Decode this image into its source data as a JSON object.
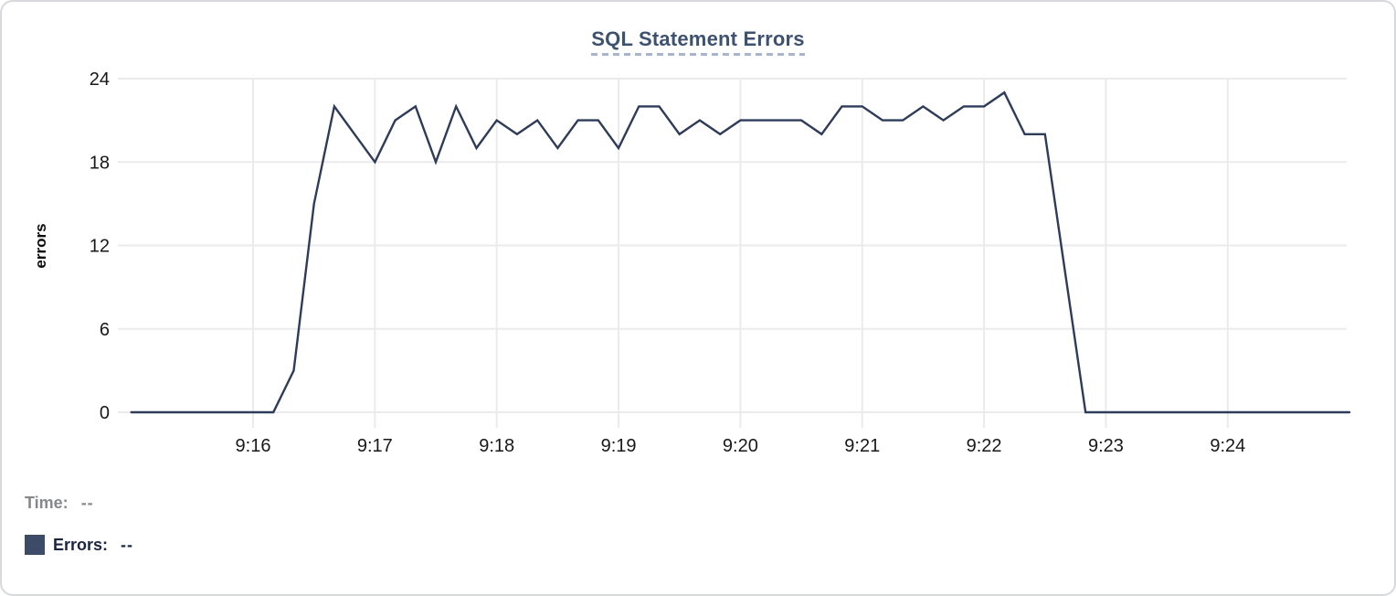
{
  "card": {
    "type": "chart-panel"
  },
  "tooltip": {
    "time_label": "Time:",
    "time_value": "--",
    "errors_label": "Errors:",
    "errors_value": "--",
    "errors_swatch_color": "#3e4b68"
  },
  "colors": {
    "line": "#2e3c5a",
    "title_text": "#3d5270",
    "title_underline": "#a9b5cb",
    "gridline": "#ebebed",
    "axis_text": "#17181a",
    "muted_text": "#87888c",
    "dark_text": "#1b2442",
    "card_border": "#d8d9dd"
  },
  "chart_data": {
    "type": "line",
    "title": "SQL Statement Errors",
    "xlabel": "",
    "ylabel": "errors",
    "grid": true,
    "legend_position": "none",
    "ylim": [
      0,
      24
    ],
    "y_ticks": [
      0,
      6,
      12,
      18,
      24
    ],
    "x_ticks": [
      "9:16",
      "9:17",
      "9:18",
      "9:19",
      "9:20",
      "9:21",
      "9:22",
      "9:23",
      "9:24"
    ],
    "series": [
      {
        "name": "Errors",
        "color": "#2e3c5a",
        "x": [
          "9:15:00",
          "9:15:10",
          "9:15:20",
          "9:15:30",
          "9:15:40",
          "9:15:50",
          "9:16:00",
          "9:16:10",
          "9:16:20",
          "9:16:30",
          "9:16:40",
          "9:16:50",
          "9:17:00",
          "9:17:10",
          "9:17:20",
          "9:17:30",
          "9:17:40",
          "9:17:50",
          "9:18:00",
          "9:18:10",
          "9:18:20",
          "9:18:30",
          "9:18:40",
          "9:18:50",
          "9:19:00",
          "9:19:10",
          "9:19:20",
          "9:19:30",
          "9:19:40",
          "9:19:50",
          "9:20:00",
          "9:20:10",
          "9:20:20",
          "9:20:30",
          "9:20:40",
          "9:20:50",
          "9:21:00",
          "9:21:10",
          "9:21:20",
          "9:21:30",
          "9:21:40",
          "9:21:50",
          "9:22:00",
          "9:22:10",
          "9:22:20",
          "9:22:30",
          "9:22:40",
          "9:22:50",
          "9:23:00",
          "9:23:10",
          "9:23:20",
          "9:23:30",
          "9:23:40",
          "9:23:50",
          "9:24:00",
          "9:24:10",
          "9:24:20",
          "9:24:30",
          "9:24:40",
          "9:24:50",
          "9:25:00"
        ],
        "values": [
          0,
          0,
          0,
          0,
          0,
          0,
          0,
          0,
          3,
          15,
          22,
          20,
          18,
          21,
          22,
          18,
          22,
          19,
          21,
          20,
          21,
          19,
          21,
          21,
          19,
          22,
          22,
          20,
          21,
          20,
          21,
          21,
          21,
          21,
          20,
          22,
          22,
          21,
          21,
          22,
          21,
          22,
          22,
          23,
          20,
          20,
          10,
          0,
          0,
          0,
          0,
          0,
          0,
          0,
          0,
          0,
          0,
          0,
          0,
          0,
          0
        ]
      }
    ]
  }
}
